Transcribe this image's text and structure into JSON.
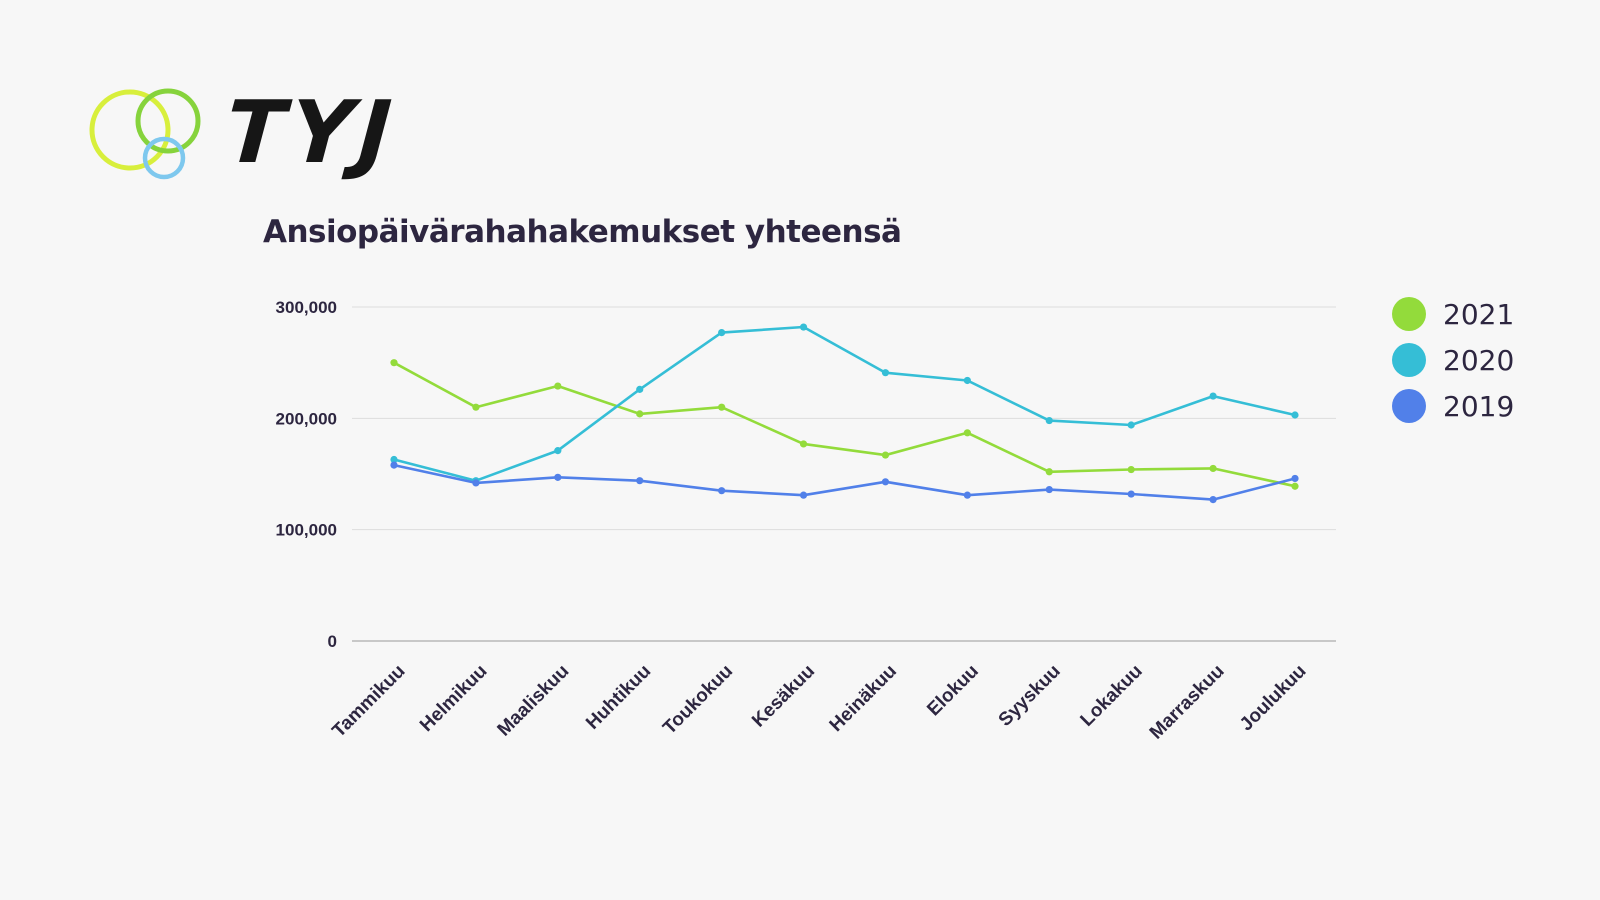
{
  "brand": {
    "logo_text": "TYJ"
  },
  "colors": {
    "2021": "#93db3b",
    "2020": "#35bed6",
    "2019": "#5180e9",
    "logo_ring_lime": "#d8ef3c",
    "logo_ring_green": "#86d33c",
    "logo_ring_blue": "#7ec8ee"
  },
  "chart_data": {
    "type": "line",
    "title": "Ansiopäivärahahakemukset yhteensä",
    "xlabel": "",
    "ylabel": "",
    "categories": [
      "Tammikuu",
      "Helmikuu",
      "Maaliskuu",
      "Huhtikuu",
      "Toukokuu",
      "Kesäkuu",
      "Heinäkuu",
      "Elokuu",
      "Syyskuu",
      "Lokakuu",
      "Marraskuu",
      "Joulukuu"
    ],
    "yticks": [
      0,
      100000,
      200000,
      300000
    ],
    "ytick_labels": [
      "0",
      "100,000",
      "200,000",
      "300,000"
    ],
    "ylim": [
      0,
      300000
    ],
    "grid": true,
    "legend_position": "right",
    "series": [
      {
        "name": "2021",
        "color": "#93db3b",
        "values": [
          250000,
          210000,
          229000,
          204000,
          210000,
          177000,
          167000,
          187000,
          152000,
          154000,
          155000,
          139000
        ]
      },
      {
        "name": "2020",
        "color": "#35bed6",
        "values": [
          163000,
          144000,
          171000,
          226000,
          277000,
          282000,
          241000,
          234000,
          198000,
          194000,
          220000,
          203000
        ]
      },
      {
        "name": "2019",
        "color": "#5180e9",
        "values": [
          158000,
          142000,
          147000,
          144000,
          135000,
          131000,
          143000,
          131000,
          136000,
          132000,
          127000,
          146000
        ]
      }
    ]
  }
}
